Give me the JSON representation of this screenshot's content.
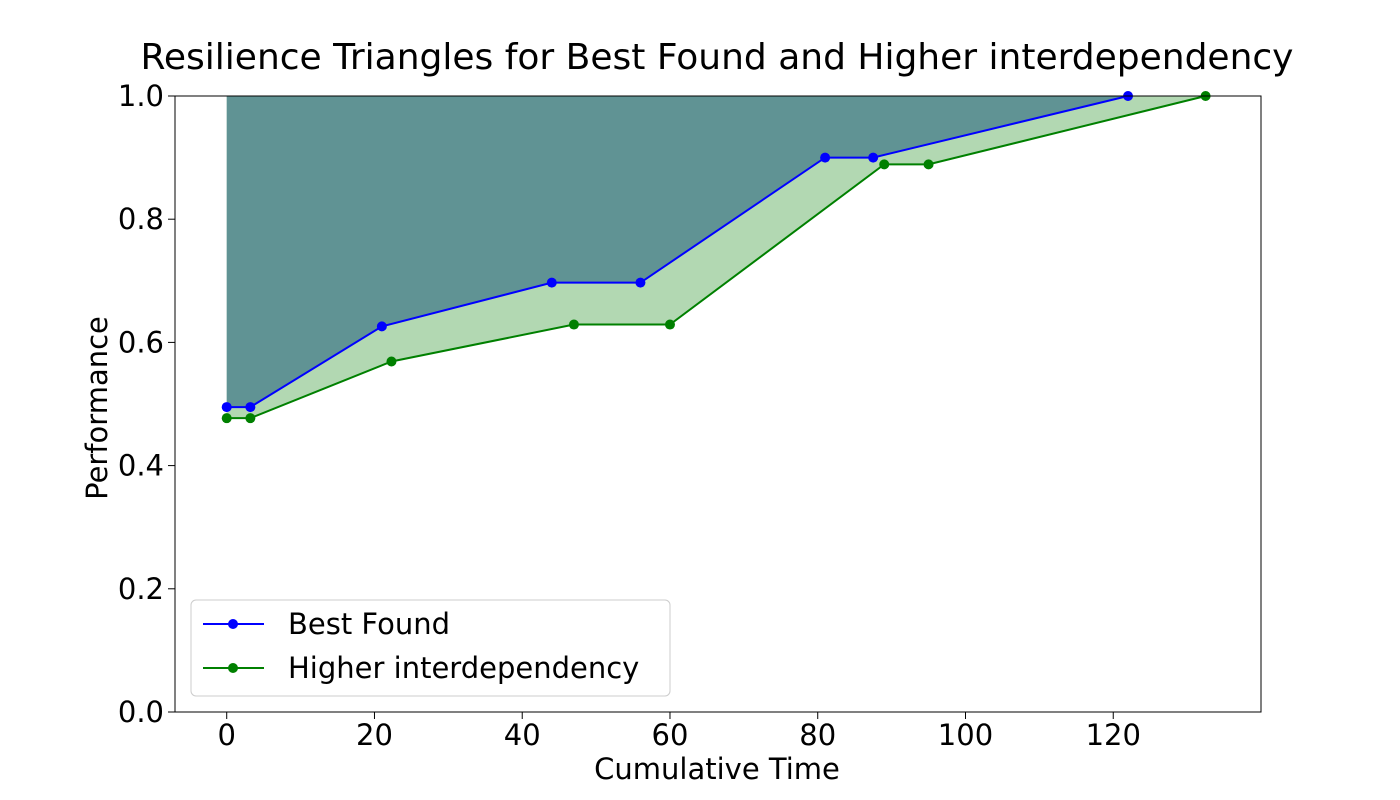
{
  "chart_data": {
    "type": "line",
    "title": "Resilience Triangles for Best Found and Higher interdependency",
    "xlabel": "Cumulative Time",
    "ylabel": "Performance",
    "xlim": [
      -7,
      140
    ],
    "ylim": [
      0.0,
      1.0
    ],
    "xticks": [
      0,
      20,
      40,
      60,
      80,
      100,
      120
    ],
    "yticks": [
      0.0,
      0.2,
      0.4,
      0.6,
      0.8,
      1.0
    ],
    "xtick_labels": [
      "0",
      "20",
      "40",
      "60",
      "80",
      "100",
      "120"
    ],
    "ytick_labels": [
      "0.0",
      "0.2",
      "0.4",
      "0.6",
      "0.8",
      "1.0"
    ],
    "grid": false,
    "legend_position": "lower-left",
    "series": [
      {
        "name": "Best Found",
        "color": "#0000ff",
        "fill_color": "#2a6680",
        "x": [
          0,
          3.2,
          21,
          44,
          56,
          81,
          87.5,
          122
        ],
        "y": [
          0.495,
          0.495,
          0.626,
          0.697,
          0.697,
          0.9,
          0.9,
          1.0
        ]
      },
      {
        "name": "Higher interdependency",
        "color": "#008000",
        "fill_color": "#b2d8b2",
        "x": [
          0,
          3.2,
          22.3,
          47,
          60,
          89,
          95,
          132.5
        ],
        "y": [
          0.477,
          0.477,
          0.569,
          0.629,
          0.629,
          0.889,
          0.889,
          1.0
        ]
      }
    ]
  }
}
